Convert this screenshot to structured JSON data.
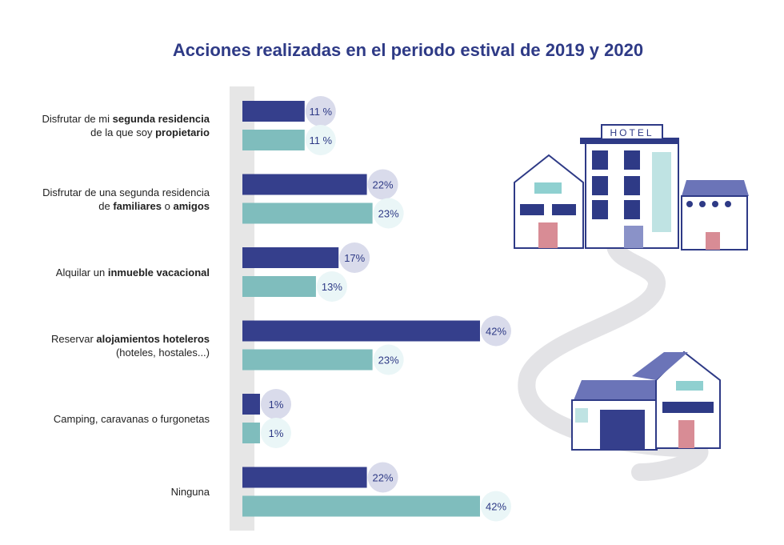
{
  "chart_data": {
    "type": "bar",
    "orientation": "horizontal",
    "title": "Acciones realizadas en el periodo estival de 2019 y 2020",
    "categories": [
      [
        {
          "t": "Disfrutar de mi ",
          "b": false
        },
        {
          "t": "segunda residencia",
          "b": true
        },
        {
          "t": "\n",
          "b": false
        },
        {
          "t": "de la que soy ",
          "b": false
        },
        {
          "t": "propietario",
          "b": true
        }
      ],
      [
        {
          "t": "Disfrutar de una segunda residencia",
          "b": false
        },
        {
          "t": "\n",
          "b": false
        },
        {
          "t": "de ",
          "b": false
        },
        {
          "t": "familiares",
          "b": true
        },
        {
          "t": " o ",
          "b": false
        },
        {
          "t": "amigos",
          "b": true
        }
      ],
      [
        {
          "t": "Alquilar un ",
          "b": false
        },
        {
          "t": "inmueble vacacional",
          "b": true
        }
      ],
      [
        {
          "t": "Reservar ",
          "b": false
        },
        {
          "t": "alojamientos hoteleros",
          "b": true
        },
        {
          "t": "\n",
          "b": false
        },
        {
          "t": "(hoteles, hostales...)",
          "b": false
        }
      ],
      [
        {
          "t": "Camping, caravanas o furgonetas",
          "b": false
        }
      ],
      [
        {
          "t": "Ninguna",
          "b": false
        }
      ]
    ],
    "series": [
      {
        "values": [
          11,
          22,
          17,
          42,
          1,
          22
        ],
        "labels": [
          "11 %",
          "22%",
          "17%",
          "42%",
          "1%",
          "22%"
        ],
        "color": "#353f8c",
        "bubble": "#d9dbeb"
      },
      {
        "values": [
          11,
          23,
          13,
          23,
          1,
          42
        ],
        "labels": [
          "11 %",
          "23%",
          "13%",
          "23%",
          "1%",
          "42%"
        ],
        "color": "#7fbdbd",
        "bubble": "#eaf6f7"
      }
    ],
    "xlim": [
      0,
      42
    ],
    "grid": false,
    "legend": "none"
  },
  "illustration": {
    "sign_text": "HOTEL"
  }
}
